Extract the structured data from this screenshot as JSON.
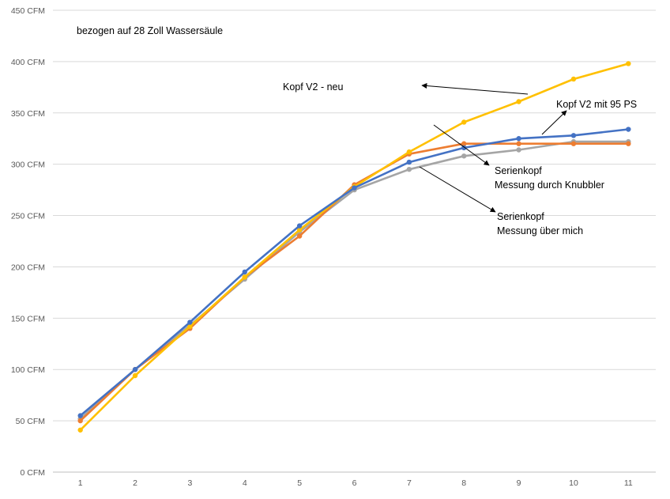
{
  "chart_data": {
    "type": "line",
    "title": "",
    "xlabel": "",
    "ylabel": "",
    "subtitle": "bezogen auf 28 Zoll Wassersäule",
    "categories": [
      "1",
      "2",
      "3",
      "4",
      "5",
      "6",
      "7",
      "8",
      "9",
      "10",
      "11"
    ],
    "ylim": [
      0,
      450
    ],
    "y_ticks": [
      {
        "value": 0,
        "label": "0 CFM"
      },
      {
        "value": 50,
        "label": "50 CFM"
      },
      {
        "value": 100,
        "label": "100 CFM"
      },
      {
        "value": 150,
        "label": "150 CFM"
      },
      {
        "value": 200,
        "label": "200 CFM"
      },
      {
        "value": 250,
        "label": "250 CFM"
      },
      {
        "value": 300,
        "label": "300 CFM"
      },
      {
        "value": 350,
        "label": "350 CFM"
      },
      {
        "value": 400,
        "label": "400 CFM"
      },
      {
        "value": 450,
        "label": "450 CFM"
      }
    ],
    "grid": true,
    "series": [
      {
        "name": "Serienkopf - Messung über mich",
        "color": "#a5a5a5",
        "values": [
          52,
          100,
          143,
          188,
          234,
          275,
          295,
          308,
          314,
          322,
          322
        ]
      },
      {
        "name": "Serienkopf - Messung durch Knubbler",
        "color": "#ed7d31",
        "values": [
          50,
          100,
          140,
          190,
          230,
          280,
          310,
          320,
          320,
          320,
          320
        ]
      },
      {
        "name": "Kopf V2 - neu",
        "color": "#ffc000",
        "values": [
          41,
          94,
          142,
          190,
          236,
          278,
          312,
          341,
          361,
          383,
          398
        ]
      },
      {
        "name": "Kopf V2 mit 95 PS",
        "color": "#4472c4",
        "values": [
          55,
          100,
          146,
          195,
          240,
          277,
          302,
          316,
          325,
          328,
          334
        ]
      }
    ],
    "annotations": [
      {
        "id": "kopf-v2-neu",
        "text": "Kopf V2 - neu"
      },
      {
        "id": "kopf-v2-95",
        "text": "Kopf V2 mit 95 PS"
      },
      {
        "id": "serien-knubbler-1",
        "text": "Serienkopf"
      },
      {
        "id": "serien-knubbler-2",
        "text": "Messung durch Knubbler"
      },
      {
        "id": "serien-mich-1",
        "text": "Serienkopf"
      },
      {
        "id": "serien-mich-2",
        "text": "Messung über mich"
      }
    ]
  }
}
